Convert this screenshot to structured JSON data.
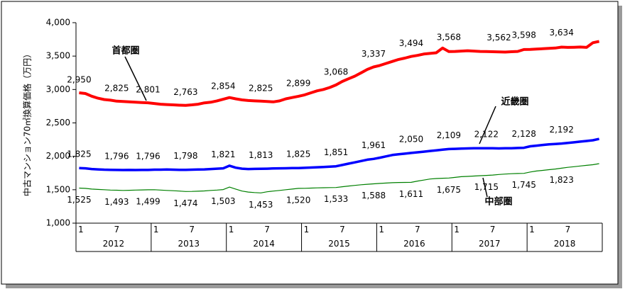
{
  "chart_data": {
    "type": "line",
    "title": "",
    "xlabel": "",
    "ylabel": "中古マンション70㎡換算価格（万円）",
    "ylim": [
      1000,
      4000
    ],
    "yticks": [
      1000,
      1500,
      2000,
      2500,
      3000,
      3500,
      4000
    ],
    "ytick_labels": [
      "1,000",
      "1,500",
      "2,000",
      "2,500",
      "3,000",
      "3,500",
      "4,000"
    ],
    "x": [
      "2012-01",
      "2012-02",
      "2012-03",
      "2012-04",
      "2012-05",
      "2012-06",
      "2012-07",
      "2012-08",
      "2012-09",
      "2012-10",
      "2012-11",
      "2012-12",
      "2013-01",
      "2013-02",
      "2013-03",
      "2013-04",
      "2013-05",
      "2013-06",
      "2013-07",
      "2013-08",
      "2013-09",
      "2013-10",
      "2013-11",
      "2013-12",
      "2014-01",
      "2014-02",
      "2014-03",
      "2014-04",
      "2014-05",
      "2014-06",
      "2014-07",
      "2014-08",
      "2014-09",
      "2014-10",
      "2014-11",
      "2014-12",
      "2015-01",
      "2015-02",
      "2015-03",
      "2015-04",
      "2015-05",
      "2015-06",
      "2015-07",
      "2015-08",
      "2015-09",
      "2015-10",
      "2015-11",
      "2015-12",
      "2016-01",
      "2016-02",
      "2016-03",
      "2016-04",
      "2016-05",
      "2016-06",
      "2016-07",
      "2016-08",
      "2016-09",
      "2016-10",
      "2016-11",
      "2016-12",
      "2017-01",
      "2017-02",
      "2017-03",
      "2017-04",
      "2017-05",
      "2017-06",
      "2017-07",
      "2017-08",
      "2017-09",
      "2017-10",
      "2017-11",
      "2017-12",
      "2018-01",
      "2018-02",
      "2018-03",
      "2018-04",
      "2018-05",
      "2018-06",
      "2018-07",
      "2018-08",
      "2018-09",
      "2018-10",
      "2018-11",
      "2018-12"
    ],
    "x_tick_labels": [
      "1",
      "",
      "",
      "",
      "",
      "",
      "7",
      "",
      "",
      "",
      "",
      "",
      "1",
      "",
      "",
      "",
      "",
      "",
      "7",
      "",
      "",
      "",
      "",
      "",
      "1",
      "",
      "",
      "",
      "",
      "",
      "7",
      "",
      "",
      "",
      "",
      "",
      "1",
      "",
      "",
      "",
      "",
      "",
      "7",
      "",
      "",
      "",
      "",
      "",
      "1",
      "",
      "",
      "",
      "",
      "",
      "7",
      "",
      "",
      "",
      "",
      "",
      "1",
      "",
      "",
      "",
      "",
      "",
      "7",
      "",
      "",
      "",
      "",
      "",
      "1",
      "",
      "",
      "",
      "",
      "",
      "7",
      "",
      "",
      "",
      "",
      ""
    ],
    "years": [
      "2012",
      "2013",
      "2014",
      "2015",
      "2016",
      "2017",
      "2018"
    ],
    "grid": false,
    "legend": "none",
    "series": [
      {
        "name": "首都圏",
        "color": "#ff0000",
        "values": [
          2950,
          2940,
          2900,
          2870,
          2850,
          2840,
          2825,
          2820,
          2815,
          2810,
          2805,
          2801,
          2790,
          2780,
          2775,
          2770,
          2765,
          2763,
          2770,
          2780,
          2800,
          2810,
          2830,
          2854,
          2880,
          2860,
          2845,
          2835,
          2830,
          2825,
          2820,
          2815,
          2830,
          2860,
          2880,
          2899,
          2920,
          2950,
          2980,
          3000,
          3030,
          3068,
          3120,
          3160,
          3200,
          3250,
          3300,
          3337,
          3360,
          3390,
          3420,
          3450,
          3470,
          3494,
          3510,
          3530,
          3540,
          3550,
          3620,
          3568,
          3570,
          3575,
          3580,
          3575,
          3570,
          3568,
          3565,
          3562,
          3560,
          3565,
          3570,
          3598,
          3600,
          3605,
          3610,
          3615,
          3620,
          3634,
          3630,
          3632,
          3635,
          3630,
          3700,
          3720
        ]
      },
      {
        "name": "近畿圏",
        "color": "#0000ff",
        "values": [
          1825,
          1820,
          1810,
          1805,
          1800,
          1798,
          1796,
          1795,
          1796,
          1795,
          1796,
          1796,
          1800,
          1800,
          1802,
          1800,
          1798,
          1798,
          1800,
          1802,
          1805,
          1810,
          1815,
          1821,
          1860,
          1830,
          1815,
          1810,
          1812,
          1813,
          1815,
          1818,
          1820,
          1822,
          1824,
          1825,
          1828,
          1832,
          1836,
          1840,
          1845,
          1851,
          1870,
          1890,
          1910,
          1930,
          1950,
          1961,
          1980,
          2000,
          2020,
          2030,
          2040,
          2050,
          2060,
          2070,
          2080,
          2090,
          2100,
          2109,
          2112,
          2115,
          2118,
          2120,
          2121,
          2122,
          2120,
          2118,
          2120,
          2122,
          2125,
          2128,
          2150,
          2160,
          2170,
          2180,
          2185,
          2192,
          2200,
          2210,
          2220,
          2230,
          2240,
          2260
        ]
      },
      {
        "name": "中部圏",
        "color": "#008000",
        "values": [
          1525,
          1520,
          1510,
          1505,
          1500,
          1495,
          1493,
          1490,
          1492,
          1495,
          1497,
          1499,
          1500,
          1495,
          1490,
          1485,
          1480,
          1474,
          1475,
          1478,
          1482,
          1490,
          1495,
          1503,
          1540,
          1510,
          1480,
          1465,
          1458,
          1453,
          1470,
          1480,
          1490,
          1500,
          1510,
          1520,
          1522,
          1525,
          1528,
          1530,
          1532,
          1533,
          1545,
          1555,
          1565,
          1575,
          1582,
          1588,
          1595,
          1600,
          1605,
          1608,
          1610,
          1611,
          1630,
          1645,
          1660,
          1668,
          1672,
          1675,
          1685,
          1695,
          1700,
          1705,
          1710,
          1715,
          1720,
          1728,
          1735,
          1740,
          1743,
          1745,
          1765,
          1780,
          1790,
          1800,
          1810,
          1823,
          1835,
          1845,
          1855,
          1865,
          1875,
          1890
        ]
      }
    ],
    "annotations": [
      {
        "series": 0,
        "index": 0,
        "text": "2,950"
      },
      {
        "series": 0,
        "index": 6,
        "text": "2,825"
      },
      {
        "series": 0,
        "index": 11,
        "text": "2,801"
      },
      {
        "series": 0,
        "index": 17,
        "text": "2,763"
      },
      {
        "series": 0,
        "index": 23,
        "text": "2,854"
      },
      {
        "series": 0,
        "index": 29,
        "text": "2,825"
      },
      {
        "series": 0,
        "index": 35,
        "text": "2,899"
      },
      {
        "series": 0,
        "index": 41,
        "text": "3,068"
      },
      {
        "series": 0,
        "index": 47,
        "text": "3,337"
      },
      {
        "series": 0,
        "index": 53,
        "text": "3,494"
      },
      {
        "series": 0,
        "index": 59,
        "text": "3,568"
      },
      {
        "series": 0,
        "index": 67,
        "text": "3,562"
      },
      {
        "series": 0,
        "index": 71,
        "text": "3,598"
      },
      {
        "series": 0,
        "index": 77,
        "text": "3,634"
      },
      {
        "series": 1,
        "index": 0,
        "text": "1,825"
      },
      {
        "series": 1,
        "index": 6,
        "text": "1,796"
      },
      {
        "series": 1,
        "index": 11,
        "text": "1,796"
      },
      {
        "series": 1,
        "index": 17,
        "text": "1,798"
      },
      {
        "series": 1,
        "index": 23,
        "text": "1,821"
      },
      {
        "series": 1,
        "index": 29,
        "text": "1,813"
      },
      {
        "series": 1,
        "index": 35,
        "text": "1,825"
      },
      {
        "series": 1,
        "index": 41,
        "text": "1,851"
      },
      {
        "series": 1,
        "index": 47,
        "text": "1,961"
      },
      {
        "series": 1,
        "index": 53,
        "text": "2,050"
      },
      {
        "series": 1,
        "index": 59,
        "text": "2,109"
      },
      {
        "series": 1,
        "index": 65,
        "text": "2,122"
      },
      {
        "series": 1,
        "index": 71,
        "text": "2,128"
      },
      {
        "series": 1,
        "index": 77,
        "text": "2,192"
      },
      {
        "series": 2,
        "index": 0,
        "text": "1,525"
      },
      {
        "series": 2,
        "index": 6,
        "text": "1,493"
      },
      {
        "series": 2,
        "index": 11,
        "text": "1,499"
      },
      {
        "series": 2,
        "index": 17,
        "text": "1,474"
      },
      {
        "series": 2,
        "index": 23,
        "text": "1,503"
      },
      {
        "series": 2,
        "index": 29,
        "text": "1,453"
      },
      {
        "series": 2,
        "index": 35,
        "text": "1,520"
      },
      {
        "series": 2,
        "index": 41,
        "text": "1,533"
      },
      {
        "series": 2,
        "index": 47,
        "text": "1,588"
      },
      {
        "series": 2,
        "index": 53,
        "text": "1,611"
      },
      {
        "series": 2,
        "index": 59,
        "text": "1,675"
      },
      {
        "series": 2,
        "index": 65,
        "text": "1,715"
      },
      {
        "series": 2,
        "index": 71,
        "text": "1,745"
      },
      {
        "series": 2,
        "index": 77,
        "text": "1,823"
      }
    ]
  }
}
